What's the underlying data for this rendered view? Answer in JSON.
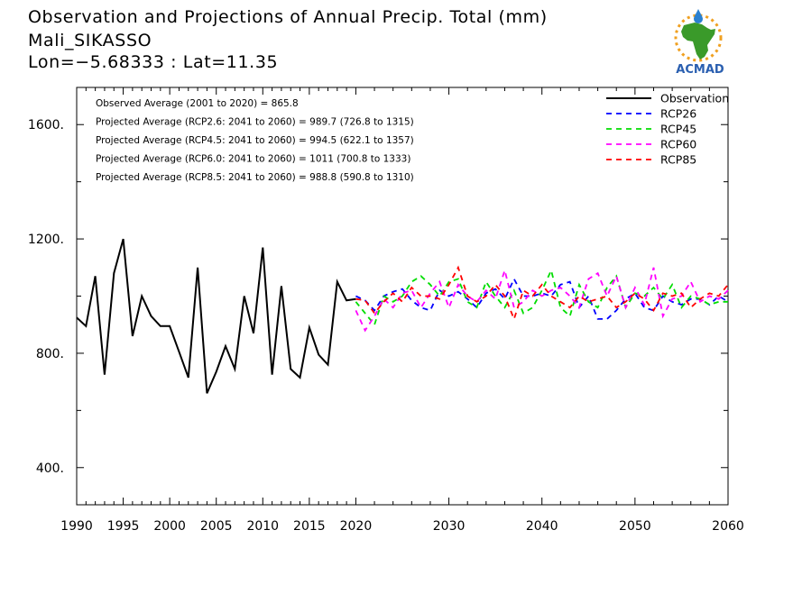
{
  "header": {
    "title": "Observation and Projections of Annual Precip. Total (mm)",
    "location": "Mali_SIKASSO",
    "coords": "Lon=−5.68333 : Lat=11.35"
  },
  "logo": {
    "text": "ACMAD",
    "colors": {
      "africa": "#3a9a2a",
      "text": "#2a5fb0",
      "sun": "#f0a020",
      "drop": "#2a80d0"
    }
  },
  "annotations": [
    "Observed Average (2001 to 2020) = 865.8",
    "Projected Average (RCP2.6: 2041 to 2060) = 989.7 (726.8 to 1315)",
    "Projected Average (RCP4.5: 2041 to 2060) = 994.5 (622.1 to 1357)",
    "Projected Average (RCP6.0: 2041 to 2060) = 1011 (700.8 to 1333)",
    "Projected Average (RCP8.5: 2041 to 2060) = 988.8 (590.8 to 1310)"
  ],
  "chart_data": {
    "type": "line",
    "title": "Observation and Projections of Annual Precip. Total (mm)",
    "xlim": [
      1990,
      2060
    ],
    "ylim": [
      270,
      1730
    ],
    "x_ticks": [
      1990,
      1995,
      2000,
      2005,
      2010,
      2015,
      2020,
      2030,
      2040,
      2050,
      2060
    ],
    "y_ticks": [
      400,
      800,
      1200,
      1600
    ],
    "y_tick_labels": [
      "400.",
      "800.",
      "1200.",
      "1600."
    ],
    "legend_position": "top-right",
    "series": [
      {
        "name": "Observation",
        "color": "#000000",
        "style": "solid",
        "x": [
          1990,
          1991,
          1992,
          1993,
          1994,
          1995,
          1996,
          1997,
          1998,
          1999,
          2000,
          2001,
          2002,
          2003,
          2004,
          2005,
          2006,
          2007,
          2008,
          2009,
          2010,
          2011,
          2012,
          2013,
          2014,
          2015,
          2016,
          2017,
          2018,
          2019,
          2020
        ],
        "values": [
          925,
          895,
          1070,
          725,
          1080,
          1200,
          860,
          1000,
          930,
          895,
          895,
          805,
          715,
          1100,
          660,
          735,
          825,
          745,
          1000,
          870,
          1170,
          725,
          1035,
          745,
          715,
          890,
          795,
          760,
          1050,
          985,
          990
        ]
      },
      {
        "name": "RCP26",
        "color": "#0000ff",
        "style": "dashed",
        "x": [
          2020,
          2021,
          2022,
          2023,
          2024,
          2025,
          2026,
          2027,
          2028,
          2029,
          2030,
          2031,
          2032,
          2033,
          2034,
          2035,
          2036,
          2037,
          2038,
          2039,
          2040,
          2041,
          2042,
          2043,
          2044,
          2045,
          2046,
          2047,
          2048,
          2049,
          2050,
          2051,
          2052,
          2053,
          2054,
          2055,
          2056,
          2057,
          2058,
          2059,
          2060
        ],
        "values": [
          1000,
          985,
          950,
          1000,
          1015,
          1025,
          985,
          960,
          950,
          1020,
          1000,
          1015,
          990,
          960,
          1010,
          1025,
          990,
          1060,
          1000,
          1000,
          1010,
          1000,
          1040,
          1050,
          960,
          1000,
          920,
          920,
          950,
          990,
          1010,
          960,
          950,
          1000,
          980,
          970,
          990,
          990,
          970,
          1000,
          980
        ]
      },
      {
        "name": "RCP45",
        "color": "#00dd00",
        "style": "dashed",
        "x": [
          2020,
          2021,
          2022,
          2023,
          2024,
          2025,
          2026,
          2027,
          2028,
          2029,
          2030,
          2031,
          2032,
          2033,
          2034,
          2035,
          2036,
          2037,
          2038,
          2039,
          2040,
          2041,
          2042,
          2043,
          2044,
          2045,
          2046,
          2047,
          2048,
          2049,
          2050,
          2051,
          2052,
          2053,
          2054,
          2055,
          2056,
          2057,
          2058,
          2059,
          2060
        ],
        "values": [
          980,
          940,
          900,
          1000,
          980,
          1000,
          1050,
          1070,
          1040,
          1000,
          1050,
          1060,
          980,
          960,
          1050,
          1000,
          960,
          1020,
          940,
          960,
          1020,
          1090,
          960,
          930,
          1040,
          980,
          960,
          1030,
          1070,
          960,
          1010,
          1000,
          1030,
          990,
          1040,
          960,
          1000,
          990,
          970,
          980,
          980
        ]
      },
      {
        "name": "RCP60",
        "color": "#ff00ff",
        "style": "dashed",
        "x": [
          2020,
          2021,
          2022,
          2023,
          2024,
          2025,
          2026,
          2027,
          2028,
          2029,
          2030,
          2031,
          2032,
          2033,
          2034,
          2035,
          2036,
          2037,
          2038,
          2039,
          2040,
          2041,
          2042,
          2043,
          2044,
          2045,
          2046,
          2047,
          2048,
          2049,
          2050,
          2051,
          2052,
          2053,
          2054,
          2055,
          2056,
          2057,
          2058,
          2059,
          2060
        ],
        "values": [
          950,
          880,
          930,
          990,
          960,
          1010,
          1020,
          960,
          1010,
          1050,
          960,
          1040,
          1000,
          980,
          1020,
          990,
          1090,
          960,
          980,
          1020,
          1000,
          1020,
          1030,
          1000,
          960,
          1060,
          1080,
          1000,
          1070,
          960,
          1030,
          970,
          1100,
          930,
          990,
          1000,
          1050,
          980,
          1000,
          990,
          1020
        ]
      },
      {
        "name": "RCP85",
        "color": "#ff0000",
        "style": "dashed",
        "x": [
          2020,
          2021,
          2022,
          2023,
          2024,
          2025,
          2026,
          2027,
          2028,
          2029,
          2030,
          2031,
          2032,
          2033,
          2034,
          2035,
          2036,
          2037,
          2038,
          2039,
          2040,
          2041,
          2042,
          2043,
          2044,
          2045,
          2046,
          2047,
          2048,
          2049,
          2050,
          2051,
          2052,
          2053,
          2054,
          2055,
          2056,
          2057,
          2058,
          2059,
          2060
        ],
        "values": [
          990,
          985,
          940,
          980,
          1010,
          980,
          1030,
          1000,
          1000,
          990,
          1040,
          1100,
          1000,
          980,
          1000,
          1040,
          1000,
          920,
          1020,
          1000,
          1040,
          1000,
          980,
          960,
          1000,
          980,
          990,
          1000,
          960,
          980,
          1010,
          990,
          950,
          1010,
          1000,
          1010,
          960,
          990,
          1010,
          1000,
          1040
        ]
      }
    ]
  }
}
